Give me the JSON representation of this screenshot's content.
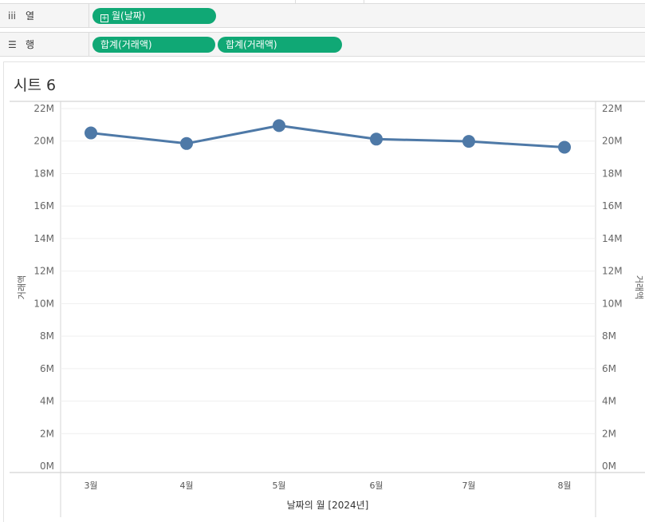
{
  "shelves": {
    "columns": {
      "label": "열",
      "icon": "columns-icon",
      "pills": [
        "월(날짜)"
      ]
    },
    "rows": {
      "label": "행",
      "icon": "rows-icon",
      "pills": [
        "합계(거래액)",
        "합계(거래액)"
      ]
    }
  },
  "colors": {
    "pill": "#10a875",
    "line": "#4e79a7"
  },
  "sheet": {
    "title": "시트 6"
  },
  "chart_data": {
    "type": "line",
    "categories": [
      "3월",
      "4월",
      "5월",
      "6월",
      "7월",
      "8월"
    ],
    "series": [
      {
        "values": [
          20500000,
          19850000,
          20950000,
          20120000,
          19980000,
          19620000
        ]
      }
    ],
    "xlabel": "날짜의 월 [2024년]",
    "ylabel": "거래액",
    "y2label": "거래액",
    "ylim": [
      0,
      22000000
    ],
    "yticks": [
      "0M",
      "2M",
      "4M",
      "6M",
      "8M",
      "10M",
      "12M",
      "14M",
      "16M",
      "18M",
      "20M",
      "22M"
    ],
    "grid": true,
    "markers": true,
    "dual_axis": true
  }
}
